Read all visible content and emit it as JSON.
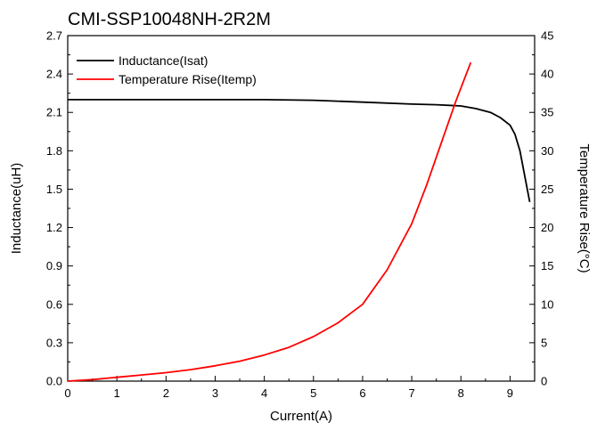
{
  "chart_data": {
    "type": "line",
    "title": "CMI-SSP10048NH-2R2M",
    "xlabel": "Current(A)",
    "ylabel": "Inductance(uH)",
    "y2label": "Temperature Rise(°C)",
    "xlim": [
      0,
      9.5
    ],
    "ylim": [
      0,
      2.7
    ],
    "y2lim": [
      0,
      45
    ],
    "x_ticks": [
      "0",
      "1",
      "2",
      "3",
      "4",
      "5",
      "6",
      "7",
      "8",
      "9"
    ],
    "y_ticks": [
      "0.0",
      "0.3",
      "0.6",
      "0.9",
      "1.2",
      "1.5",
      "1.8",
      "2.1",
      "2.4",
      "2.7"
    ],
    "y2_ticks": [
      "0",
      "5",
      "10",
      "15",
      "20",
      "25",
      "30",
      "35",
      "40",
      "45"
    ],
    "grid": false,
    "legend_position": "top-left",
    "series": [
      {
        "name": "Inductance(Isat)",
        "axis": "left",
        "color": "#000000",
        "x": [
          0,
          1,
          2,
          3,
          4,
          5,
          6,
          7,
          7.5,
          8,
          8.3,
          8.6,
          8.8,
          9.0,
          9.1,
          9.2,
          9.3,
          9.4
        ],
        "y": [
          2.2,
          2.2,
          2.2,
          2.2,
          2.2,
          2.195,
          2.18,
          2.165,
          2.16,
          2.15,
          2.13,
          2.1,
          2.06,
          2.0,
          1.93,
          1.8,
          1.6,
          1.4
        ]
      },
      {
        "name": "Temperature Rise(Itemp)",
        "axis": "right",
        "color": "#ff0000",
        "x": [
          0,
          0.5,
          1,
          1.5,
          2,
          2.5,
          3,
          3.5,
          4,
          4.5,
          5,
          5.5,
          6,
          6.5,
          7,
          7.3,
          7.6,
          7.9,
          8.2
        ],
        "y": [
          0,
          0.2,
          0.5,
          0.8,
          1.1,
          1.5,
          2.0,
          2.6,
          3.4,
          4.4,
          5.8,
          7.6,
          10.0,
          14.5,
          20.5,
          25.5,
          31.0,
          36.5,
          41.5
        ]
      }
    ]
  }
}
